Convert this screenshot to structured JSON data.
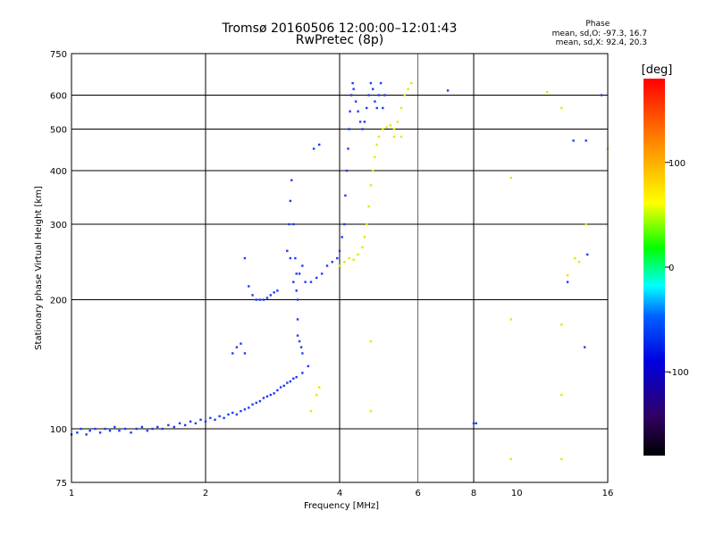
{
  "chart_data": {
    "type": "scatter",
    "title": "Tromsø 20160506 12:00:00–12:01:43",
    "subtitle": "RwPretec (8p)",
    "xlabel": "Frequency [MHz]",
    "ylabel": "Stationary phase Virtual Height [km]",
    "x_scale": "log",
    "y_scale": "log",
    "xlim": [
      1,
      16
    ],
    "ylim": [
      75,
      750
    ],
    "xticks": [
      1,
      2,
      4,
      6,
      8,
      10,
      16
    ],
    "xticks_major_grid": [
      2,
      4,
      8
    ],
    "xticks_minor_grid": [
      6
    ],
    "yticks": [
      75,
      100,
      200,
      300,
      400,
      500,
      600,
      750
    ],
    "legend": {
      "title": "Phase",
      "lines": [
        "mean, sd,O: -97.3, 16.7",
        "mean, sd,X:  92.4, 20.3"
      ]
    },
    "colorbar": {
      "label": "[deg]",
      "range": [
        -180,
        180
      ],
      "ticks": [
        100,
        0,
        -100
      ],
      "colors": [
        "#ff0000",
        "#ff8000",
        "#ffff00",
        "#00ff00",
        "#00ffff",
        "#0040ff",
        "#0000d0",
        "#400080",
        "#000000"
      ]
    },
    "series": [
      {
        "mode": "O",
        "color": "#1a3aff",
        "points": [
          [
            1.0,
            97
          ],
          [
            1.03,
            98
          ],
          [
            1.05,
            100
          ],
          [
            1.08,
            97
          ],
          [
            1.1,
            99
          ],
          [
            1.13,
            100
          ],
          [
            1.16,
            98
          ],
          [
            1.19,
            100
          ],
          [
            1.22,
            99
          ],
          [
            1.25,
            101
          ],
          [
            1.28,
            99
          ],
          [
            1.32,
            100
          ],
          [
            1.36,
            98
          ],
          [
            1.4,
            100
          ],
          [
            1.44,
            101
          ],
          [
            1.48,
            99
          ],
          [
            1.52,
            100
          ],
          [
            1.56,
            101
          ],
          [
            1.6,
            100
          ],
          [
            1.65,
            102
          ],
          [
            1.7,
            101
          ],
          [
            1.75,
            103
          ],
          [
            1.8,
            102
          ],
          [
            1.85,
            104
          ],
          [
            1.9,
            103
          ],
          [
            1.95,
            105
          ],
          [
            2.0,
            104
          ],
          [
            2.05,
            106
          ],
          [
            2.1,
            105
          ],
          [
            2.15,
            107
          ],
          [
            2.2,
            106
          ],
          [
            2.25,
            108
          ],
          [
            2.3,
            109
          ],
          [
            2.35,
            108
          ],
          [
            2.4,
            110
          ],
          [
            2.45,
            111
          ],
          [
            2.5,
            112
          ],
          [
            2.55,
            114
          ],
          [
            2.6,
            115
          ],
          [
            2.65,
            116
          ],
          [
            2.7,
            118
          ],
          [
            2.75,
            119
          ],
          [
            2.8,
            120
          ],
          [
            2.85,
            121
          ],
          [
            2.9,
            123
          ],
          [
            2.95,
            125
          ],
          [
            3.0,
            126
          ],
          [
            3.05,
            128
          ],
          [
            3.1,
            129
          ],
          [
            3.15,
            131
          ],
          [
            3.2,
            132
          ],
          [
            3.3,
            135
          ],
          [
            3.4,
            140
          ],
          [
            2.3,
            150
          ],
          [
            2.35,
            155
          ],
          [
            2.4,
            158
          ],
          [
            2.45,
            150
          ],
          [
            2.45,
            250
          ],
          [
            2.5,
            215
          ],
          [
            2.55,
            205
          ],
          [
            2.6,
            200
          ],
          [
            2.65,
            200
          ],
          [
            2.7,
            200
          ],
          [
            2.75,
            202
          ],
          [
            2.8,
            205
          ],
          [
            2.85,
            208
          ],
          [
            2.9,
            210
          ],
          [
            3.05,
            260
          ],
          [
            3.08,
            300
          ],
          [
            3.1,
            340
          ],
          [
            3.12,
            380
          ],
          [
            3.15,
            300
          ],
          [
            3.18,
            250
          ],
          [
            3.2,
            230
          ],
          [
            3.22,
            200
          ],
          [
            3.22,
            180
          ],
          [
            3.22,
            165
          ],
          [
            3.25,
            160
          ],
          [
            3.28,
            155
          ],
          [
            3.3,
            150
          ],
          [
            3.1,
            250
          ],
          [
            3.15,
            220
          ],
          [
            3.2,
            210
          ],
          [
            3.25,
            230
          ],
          [
            3.3,
            240
          ],
          [
            3.35,
            220
          ],
          [
            3.45,
            220
          ],
          [
            3.55,
            225
          ],
          [
            3.65,
            230
          ],
          [
            3.75,
            240
          ],
          [
            3.85,
            245
          ],
          [
            3.95,
            250
          ],
          [
            4.0,
            260
          ],
          [
            4.05,
            280
          ],
          [
            4.1,
            300
          ],
          [
            4.12,
            350
          ],
          [
            4.15,
            400
          ],
          [
            4.18,
            450
          ],
          [
            4.2,
            500
          ],
          [
            4.22,
            550
          ],
          [
            4.25,
            600
          ],
          [
            4.28,
            640
          ],
          [
            4.3,
            620
          ],
          [
            4.35,
            580
          ],
          [
            4.4,
            550
          ],
          [
            4.45,
            520
          ],
          [
            4.5,
            500
          ],
          [
            4.55,
            520
          ],
          [
            4.6,
            560
          ],
          [
            4.65,
            600
          ],
          [
            4.7,
            640
          ],
          [
            4.75,
            620
          ],
          [
            4.8,
            580
          ],
          [
            4.85,
            560
          ],
          [
            4.9,
            600
          ],
          [
            4.95,
            640
          ],
          [
            5.0,
            560
          ],
          [
            5.05,
            600
          ],
          [
            3.5,
            450
          ],
          [
            3.6,
            460
          ],
          [
            7.0,
            615
          ],
          [
            8.0,
            103
          ],
          [
            8.1,
            103
          ],
          [
            15.5,
            600
          ],
          [
            13.4,
            470
          ],
          [
            14.3,
            470
          ],
          [
            14.4,
            255
          ],
          [
            13.0,
            220
          ],
          [
            14.2,
            155
          ]
        ]
      },
      {
        "mode": "X",
        "color": "#e6e600",
        "points": [
          [
            4.0,
            240
          ],
          [
            4.1,
            245
          ],
          [
            4.2,
            250
          ],
          [
            4.3,
            248
          ],
          [
            4.4,
            255
          ],
          [
            4.5,
            265
          ],
          [
            4.55,
            280
          ],
          [
            4.6,
            300
          ],
          [
            4.65,
            330
          ],
          [
            4.7,
            370
          ],
          [
            4.75,
            400
          ],
          [
            4.8,
            430
          ],
          [
            4.85,
            460
          ],
          [
            4.9,
            480
          ],
          [
            5.0,
            500
          ],
          [
            5.1,
            505
          ],
          [
            5.2,
            510
          ],
          [
            5.3,
            500
          ],
          [
            5.4,
            520
          ],
          [
            5.5,
            560
          ],
          [
            5.6,
            600
          ],
          [
            5.7,
            620
          ],
          [
            5.8,
            640
          ],
          [
            5.5,
            480
          ],
          [
            5.3,
            480
          ],
          [
            3.6,
            125
          ],
          [
            3.55,
            120
          ],
          [
            3.45,
            110
          ],
          [
            4.7,
            160
          ],
          [
            4.7,
            110
          ],
          [
            9.7,
            385
          ],
          [
            9.7,
            180
          ],
          [
            12.6,
            560
          ],
          [
            12.6,
            175
          ],
          [
            12.6,
            85
          ],
          [
            12.6,
            120
          ],
          [
            9.7,
            85
          ],
          [
            11.7,
            610
          ],
          [
            16.0,
            450
          ],
          [
            13.5,
            250
          ],
          [
            13.8,
            245
          ],
          [
            14.3,
            300
          ],
          [
            13.0,
            228
          ]
        ]
      }
    ]
  }
}
